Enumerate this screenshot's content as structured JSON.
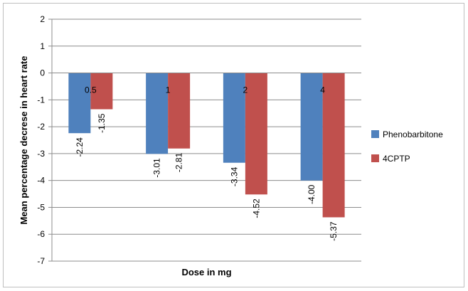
{
  "chart_data": {
    "type": "bar",
    "categories": [
      "0.5",
      "1",
      "2",
      "4"
    ],
    "series": [
      {
        "name": "Phenobarbitone",
        "values": [
          -2.24,
          -3.01,
          -3.34,
          -4.0
        ],
        "labels": [
          "-2.24",
          "-3.01",
          "-3.34",
          "-4.00"
        ],
        "color": "#4f81bd"
      },
      {
        "name": "4CPTP",
        "values": [
          -1.35,
          -2.81,
          -4.52,
          -5.37
        ],
        "labels": [
          "-1.35",
          "-2.81",
          "-4.52",
          "-5.37"
        ],
        "color": "#c0504d"
      }
    ],
    "title": "",
    "xlabel": "Dose in mg",
    "ylabel": "Mean percentage decrese in heart rate",
    "ylim": [
      -7,
      2
    ],
    "yticks": [
      "2",
      "1",
      "0",
      "-1",
      "-2",
      "-3",
      "-4",
      "-5",
      "-6",
      "-7"
    ],
    "grid": true,
    "legend_position": "right"
  }
}
